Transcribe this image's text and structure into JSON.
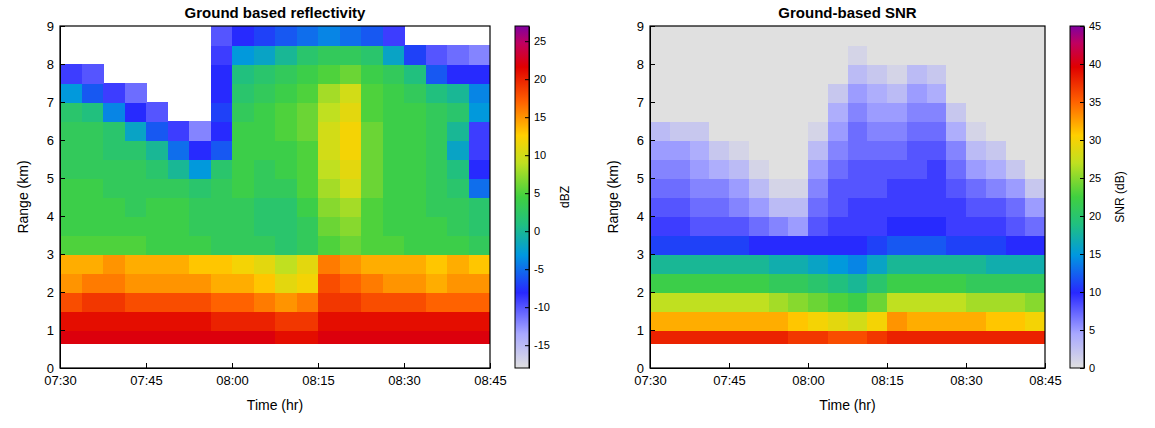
{
  "chart_data": [
    {
      "type": "heatmap",
      "title": "Ground based reflectivity",
      "x_label": "Time (hr)",
      "y_label": "Range (km)",
      "colorbar_label": "dBZ",
      "xlim": [
        7.5,
        8.75
      ],
      "xticks": [
        {
          "value": 7.5,
          "label": "07:30"
        },
        {
          "value": 7.75,
          "label": "07:45"
        },
        {
          "value": 8.0,
          "label": "08:00"
        },
        {
          "value": 8.25,
          "label": "08:15"
        },
        {
          "value": 8.5,
          "label": "08:30"
        },
        {
          "value": 8.75,
          "label": "08:45"
        }
      ],
      "ylim": [
        0,
        9
      ],
      "yticks": [
        0,
        1,
        2,
        3,
        4,
        5,
        6,
        7,
        8,
        9
      ],
      "x_bins": [
        7.5,
        7.5625,
        7.625,
        7.6875,
        7.75,
        7.8125,
        7.875,
        7.9375,
        8.0,
        8.0625,
        8.125,
        8.1875,
        8.25,
        8.3125,
        8.375,
        8.4375,
        8.5,
        8.5625,
        8.625,
        8.6875,
        8.75
      ],
      "y_bins": [
        0,
        0.65,
        1,
        1.5,
        2,
        2.5,
        3,
        3.5,
        4,
        4.5,
        5,
        5.5,
        6,
        6.5,
        7,
        7.5,
        8,
        8.5,
        9
      ],
      "cells": [
        [
          null,
          null,
          null,
          null,
          null,
          null,
          null,
          null,
          null,
          null,
          null,
          null,
          null,
          null,
          null,
          null,
          null,
          null,
          null,
          null
        ],
        [
          22,
          22,
          22,
          22,
          22,
          22,
          22,
          22,
          22,
          22,
          21,
          21,
          22,
          22,
          22,
          22,
          22,
          22,
          22,
          22
        ],
        [
          21,
          21,
          21,
          21,
          21,
          21,
          21,
          20,
          20,
          20,
          19,
          19,
          21,
          21,
          21,
          21,
          21,
          21,
          21,
          21
        ],
        [
          18,
          19,
          19,
          18,
          18,
          18,
          18,
          17,
          17,
          16,
          15,
          16,
          19,
          19,
          18,
          18,
          18,
          17,
          17,
          17
        ],
        [
          15,
          16,
          16,
          15,
          15,
          15,
          15,
          14,
          14,
          13,
          11,
          12,
          18,
          17,
          16,
          15,
          15,
          14,
          15,
          15
        ],
        [
          14,
          14,
          15,
          14,
          14,
          14,
          13,
          13,
          12,
          11,
          9,
          11,
          16,
          15,
          14,
          14,
          14,
          13,
          14,
          13
        ],
        [
          5,
          5,
          5,
          5,
          4,
          4,
          4,
          3,
          3,
          3,
          2,
          3,
          5,
          6,
          5,
          5,
          4,
          4,
          4,
          3
        ],
        [
          4,
          4,
          4,
          4,
          4,
          4,
          3,
          3,
          3,
          2,
          2,
          3,
          6,
          7,
          5,
          4,
          4,
          4,
          3,
          2
        ],
        [
          4,
          4,
          4,
          3,
          4,
          4,
          3,
          3,
          3,
          2,
          2,
          4,
          7,
          8,
          5,
          4,
          4,
          3,
          3,
          2
        ],
        [
          4,
          4,
          3,
          3,
          3,
          3,
          2,
          3,
          4,
          3,
          3,
          5,
          8,
          10,
          6,
          4,
          4,
          3,
          2,
          -5
        ],
        [
          3,
          3,
          3,
          3,
          2,
          0,
          -3,
          2,
          4,
          3,
          4,
          5,
          9,
          11,
          6,
          4,
          4,
          3,
          1,
          -8
        ],
        [
          3,
          3,
          2,
          2,
          0,
          -5,
          -8,
          -6,
          4,
          4,
          4,
          5,
          10,
          12,
          6,
          4,
          4,
          3,
          -2,
          -9
        ],
        [
          3,
          3,
          2,
          -2,
          -6,
          -9,
          -12,
          -8,
          4,
          4,
          5,
          6,
          10,
          12,
          6,
          4,
          4,
          3,
          0,
          -9
        ],
        [
          2,
          1,
          -4,
          -8,
          -10,
          null,
          null,
          -7,
          3,
          4,
          5,
          6,
          9,
          11,
          5,
          4,
          4,
          3,
          2,
          -3
        ],
        [
          -3,
          -6,
          -9,
          -11,
          null,
          null,
          null,
          -8,
          2,
          3,
          4,
          5,
          8,
          10,
          5,
          4,
          3,
          1,
          0,
          -4
        ],
        [
          -9,
          -10,
          null,
          null,
          null,
          null,
          null,
          -8,
          1,
          2,
          3,
          4,
          5,
          6,
          4,
          3,
          1,
          -6,
          -8,
          -8
        ],
        [
          null,
          null,
          null,
          null,
          null,
          null,
          null,
          -9,
          -3,
          -2,
          0,
          2,
          3,
          3,
          2,
          -2,
          -7,
          -10,
          -11,
          -12
        ],
        [
          null,
          null,
          null,
          null,
          null,
          null,
          null,
          -10,
          -8,
          -7,
          -6,
          -5,
          -4,
          -5,
          -6,
          -9,
          null,
          null,
          null,
          null
        ]
      ],
      "zlim": [
        -18,
        27
      ],
      "zticks": [
        -15,
        -10,
        -5,
        0,
        5,
        10,
        15,
        20,
        25
      ]
    },
    {
      "type": "heatmap",
      "title": "Ground-based SNR",
      "x_label": "Time (hr)",
      "y_label": "Range (km)",
      "colorbar_label": "SNR (dB)",
      "xlim": [
        7.5,
        8.75
      ],
      "xticks": [
        {
          "value": 7.5,
          "label": "07:30"
        },
        {
          "value": 7.75,
          "label": "07:45"
        },
        {
          "value": 8.0,
          "label": "08:00"
        },
        {
          "value": 8.25,
          "label": "08:15"
        },
        {
          "value": 8.5,
          "label": "08:30"
        },
        {
          "value": 8.75,
          "label": "08:45"
        }
      ],
      "ylim": [
        0,
        9
      ],
      "yticks": [
        0,
        1,
        2,
        3,
        4,
        5,
        6,
        7,
        8,
        9
      ],
      "x_bins": [
        7.5,
        7.5625,
        7.625,
        7.6875,
        7.75,
        7.8125,
        7.875,
        7.9375,
        8.0,
        8.0625,
        8.125,
        8.1875,
        8.25,
        8.3125,
        8.375,
        8.4375,
        8.5,
        8.5625,
        8.625,
        8.6875,
        8.75
      ],
      "y_bins": [
        0,
        0.65,
        1,
        1.5,
        2,
        2.5,
        3,
        3.5,
        4,
        4.5,
        5,
        5.5,
        6,
        6.5,
        7,
        7.5,
        8,
        8.5,
        9
      ],
      "cells": [
        [
          null,
          null,
          null,
          null,
          null,
          null,
          null,
          null,
          null,
          null,
          null,
          null,
          null,
          null,
          null,
          null,
          null,
          null,
          null,
          null
        ],
        [
          38,
          38,
          38,
          38,
          38,
          38,
          38,
          37,
          37,
          36,
          36,
          37,
          38,
          38,
          38,
          38,
          38,
          38,
          38,
          38
        ],
        [
          32,
          32,
          32,
          32,
          32,
          32,
          32,
          31,
          30,
          29,
          28,
          30,
          33,
          32,
          32,
          32,
          32,
          31,
          31,
          30
        ],
        [
          27,
          27,
          27,
          27,
          27,
          27,
          26,
          25,
          24,
          23,
          22,
          24,
          27,
          27,
          27,
          27,
          26,
          26,
          26,
          25
        ],
        [
          22,
          22,
          22,
          22,
          22,
          22,
          21,
          21,
          20,
          19,
          18,
          20,
          22,
          22,
          22,
          22,
          21,
          21,
          21,
          21
        ],
        [
          18,
          18,
          18,
          18,
          18,
          18,
          17,
          17,
          16,
          15,
          14,
          16,
          18,
          18,
          18,
          18,
          18,
          17,
          17,
          17
        ],
        [
          11,
          11,
          11,
          11,
          11,
          10,
          10,
          10,
          10,
          10,
          10,
          11,
          12,
          12,
          12,
          11,
          11,
          11,
          10,
          10
        ],
        [
          9,
          9,
          8,
          8,
          8,
          7,
          6,
          5,
          8,
          9,
          9,
          9,
          10,
          10,
          10,
          9,
          9,
          9,
          8,
          7
        ],
        [
          8,
          8,
          7,
          7,
          6,
          5,
          3,
          3,
          7,
          8,
          9,
          9,
          9,
          9,
          9,
          9,
          8,
          8,
          7,
          5
        ],
        [
          7,
          7,
          6,
          6,
          5,
          3,
          1,
          1,
          6,
          8,
          8,
          8,
          9,
          9,
          9,
          8,
          7,
          6,
          5,
          2
        ],
        [
          6,
          6,
          5,
          4,
          3,
          1,
          0,
          0,
          5,
          7,
          8,
          8,
          8,
          8,
          9,
          7,
          5,
          4,
          2,
          0
        ],
        [
          5,
          5,
          4,
          2,
          1,
          0,
          0,
          0,
          3,
          6,
          7,
          7,
          7,
          8,
          8,
          6,
          3,
          2,
          0,
          0
        ],
        [
          3,
          2,
          2,
          0,
          0,
          0,
          0,
          0,
          1,
          5,
          7,
          6,
          6,
          7,
          7,
          4,
          1,
          0,
          0,
          0
        ],
        [
          0,
          0,
          0,
          0,
          0,
          0,
          0,
          0,
          0,
          4,
          6,
          5,
          5,
          6,
          6,
          2,
          0,
          0,
          0,
          0
        ],
        [
          0,
          0,
          0,
          0,
          0,
          0,
          0,
          0,
          0,
          2,
          5,
          4,
          3,
          5,
          4,
          0,
          0,
          0,
          0,
          0
        ],
        [
          0,
          0,
          0,
          0,
          0,
          0,
          0,
          0,
          0,
          0,
          3,
          2,
          1,
          3,
          2,
          0,
          0,
          0,
          0,
          0
        ],
        [
          0,
          0,
          0,
          0,
          0,
          0,
          0,
          0,
          0,
          0,
          1,
          0,
          0,
          0,
          0,
          0,
          0,
          0,
          0,
          0
        ],
        [
          0,
          0,
          0,
          0,
          0,
          0,
          0,
          0,
          0,
          0,
          0,
          0,
          0,
          0,
          0,
          0,
          0,
          0,
          0,
          0
        ]
      ],
      "zlim": [
        0,
        45
      ],
      "zticks": [
        0,
        5,
        10,
        15,
        20,
        25,
        30,
        35,
        40,
        45
      ]
    }
  ]
}
